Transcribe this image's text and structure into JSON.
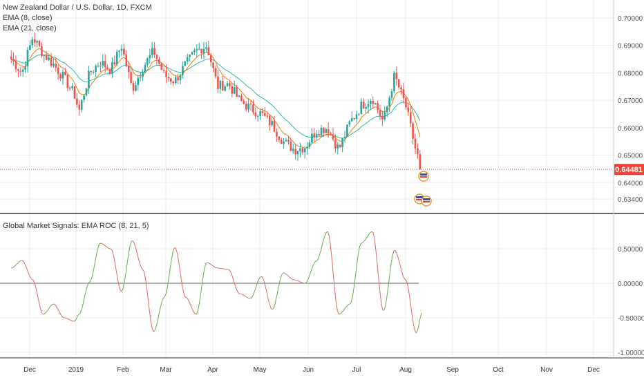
{
  "legend": {
    "symbol": "New Zealand Dollar / U.S. Dollar, 1D, FXCM",
    "ema_fast": "EMA (8, close)",
    "ema_slow": "EMA (21, close)",
    "indicator": "Global Market Signals: EMA ROC (8, 21, 5)"
  },
  "price_badge": "0.64481",
  "colors": {
    "up": "#26a69a",
    "down": "#ef5350",
    "ema_fast": "#f57c00",
    "ema_slow": "#2bbbad",
    "roc_up": "#6aa84f",
    "roc_down": "#e06666",
    "last_price": "#f44336",
    "axis_text": "#555555"
  },
  "chart_data": [
    {
      "type": "candlestick",
      "title": "New Zealand Dollar / U.S. Dollar, 1D, FXCM",
      "x_ticks": [
        "Dec",
        "2019",
        "Feb",
        "Mar",
        "Apr",
        "May",
        "Jun",
        "Jul",
        "Aug",
        "Sep",
        "Oct",
        "Nov",
        "Dec"
      ],
      "y_ticks": [
        "0.70000",
        "0.69000",
        "0.68000",
        "0.67000",
        "0.66000",
        "0.65000",
        "0.64000",
        "0.63400"
      ],
      "ylim": [
        0.631,
        0.702
      ],
      "last_price": 0.64481,
      "anchors": [
        {
          "date": "Nov 19",
          "close": 0.685
        },
        {
          "date": "Nov 26",
          "close": 0.68
        },
        {
          "date": "Dec 3",
          "close": 0.693
        },
        {
          "date": "Dec 10",
          "close": 0.687
        },
        {
          "date": "Dec 17",
          "close": 0.683
        },
        {
          "date": "Dec 24",
          "close": 0.678
        },
        {
          "date": "Dec 31",
          "close": 0.672
        },
        {
          "date": "Jan 3",
          "close": 0.666
        },
        {
          "date": "Jan 10",
          "close": 0.68
        },
        {
          "date": "Jan 17",
          "close": 0.684
        },
        {
          "date": "Jan 24",
          "close": 0.681
        },
        {
          "date": "Jan 31",
          "close": 0.69
        },
        {
          "date": "Feb 7",
          "close": 0.674
        },
        {
          "date": "Feb 14",
          "close": 0.682
        },
        {
          "date": "Feb 21",
          "close": 0.688
        },
        {
          "date": "Feb 28",
          "close": 0.679
        },
        {
          "date": "Mar 7",
          "close": 0.677
        },
        {
          "date": "Mar 14",
          "close": 0.683
        },
        {
          "date": "Mar 21",
          "close": 0.688
        },
        {
          "date": "Mar 28",
          "close": 0.69
        },
        {
          "date": "Apr 4",
          "close": 0.675
        },
        {
          "date": "Apr 11",
          "close": 0.676
        },
        {
          "date": "Apr 18",
          "close": 0.67
        },
        {
          "date": "Apr 25",
          "close": 0.667
        },
        {
          "date": "May 2",
          "close": 0.665
        },
        {
          "date": "May 9",
          "close": 0.661
        },
        {
          "date": "May 16",
          "close": 0.655
        },
        {
          "date": "May 23",
          "close": 0.652
        },
        {
          "date": "May 30",
          "close": 0.653
        },
        {
          "date": "Jun 6",
          "close": 0.659
        },
        {
          "date": "Jun 13",
          "close": 0.66
        },
        {
          "date": "Jun 20",
          "close": 0.652
        },
        {
          "date": "Jun 27",
          "close": 0.662
        },
        {
          "date": "Jul 4",
          "close": 0.668
        },
        {
          "date": "Jul 11",
          "close": 0.671
        },
        {
          "date": "Jul 18",
          "close": 0.662
        },
        {
          "date": "Jul 25",
          "close": 0.679
        },
        {
          "date": "Aug 1",
          "close": 0.668
        },
        {
          "date": "Aug 8",
          "close": 0.651
        },
        {
          "date": "Aug 12",
          "close": 0.6448
        }
      ]
    },
    {
      "type": "line",
      "title": "Global Market Signals: EMA ROC (8, 21, 5)",
      "y_ticks": [
        "0.50000",
        "0.00000",
        "-0.50000",
        "-1.00000"
      ],
      "ylim": [
        -1.05,
        0.85
      ],
      "zero_line": 0,
      "values": [
        {
          "date": "Nov 19",
          "value": 0.22
        },
        {
          "date": "Nov 26",
          "value": 0.33
        },
        {
          "date": "Dec 3",
          "value": 0.05
        },
        {
          "date": "Dec 10",
          "value": -0.45
        },
        {
          "date": "Dec 17",
          "value": -0.3
        },
        {
          "date": "Dec 24",
          "value": -0.5
        },
        {
          "date": "Dec 31",
          "value": -0.55
        },
        {
          "date": "Jan 3",
          "value": -0.45
        },
        {
          "date": "Jan 10",
          "value": 0.02
        },
        {
          "date": "Jan 17",
          "value": 0.58
        },
        {
          "date": "Jan 24",
          "value": 0.5
        },
        {
          "date": "Jan 31",
          "value": -0.12
        },
        {
          "date": "Feb 7",
          "value": 0.62
        },
        {
          "date": "Feb 14",
          "value": 0.2
        },
        {
          "date": "Feb 21",
          "value": -0.7
        },
        {
          "date": "Feb 28",
          "value": -0.2
        },
        {
          "date": "Mar 7",
          "value": 0.52
        },
        {
          "date": "Mar 14",
          "value": -0.2
        },
        {
          "date": "Mar 21",
          "value": -0.45
        },
        {
          "date": "Mar 28",
          "value": 0.3
        },
        {
          "date": "Apr 4",
          "value": 0.22
        },
        {
          "date": "Apr 11",
          "value": 0.2
        },
        {
          "date": "Apr 18",
          "value": -0.15
        },
        {
          "date": "Apr 25",
          "value": -0.22
        },
        {
          "date": "May 2",
          "value": 0.1
        },
        {
          "date": "May 9",
          "value": -0.38
        },
        {
          "date": "May 16",
          "value": 0.15
        },
        {
          "date": "May 23",
          "value": 0.05
        },
        {
          "date": "May 30",
          "value": 0.0
        },
        {
          "date": "Jun 6",
          "value": 0.32
        },
        {
          "date": "Jun 13",
          "value": 0.75
        },
        {
          "date": "Jun 20",
          "value": -0.45
        },
        {
          "date": "Jun 27",
          "value": -0.3
        },
        {
          "date": "Jul 4",
          "value": 0.58
        },
        {
          "date": "Jul 11",
          "value": 0.75
        },
        {
          "date": "Jul 18",
          "value": -0.4
        },
        {
          "date": "Jul 25",
          "value": 0.48
        },
        {
          "date": "Aug 1",
          "value": 0.05
        },
        {
          "date": "Aug 8",
          "value": -0.72
        },
        {
          "date": "Aug 12",
          "value": -0.42
        }
      ]
    }
  ]
}
